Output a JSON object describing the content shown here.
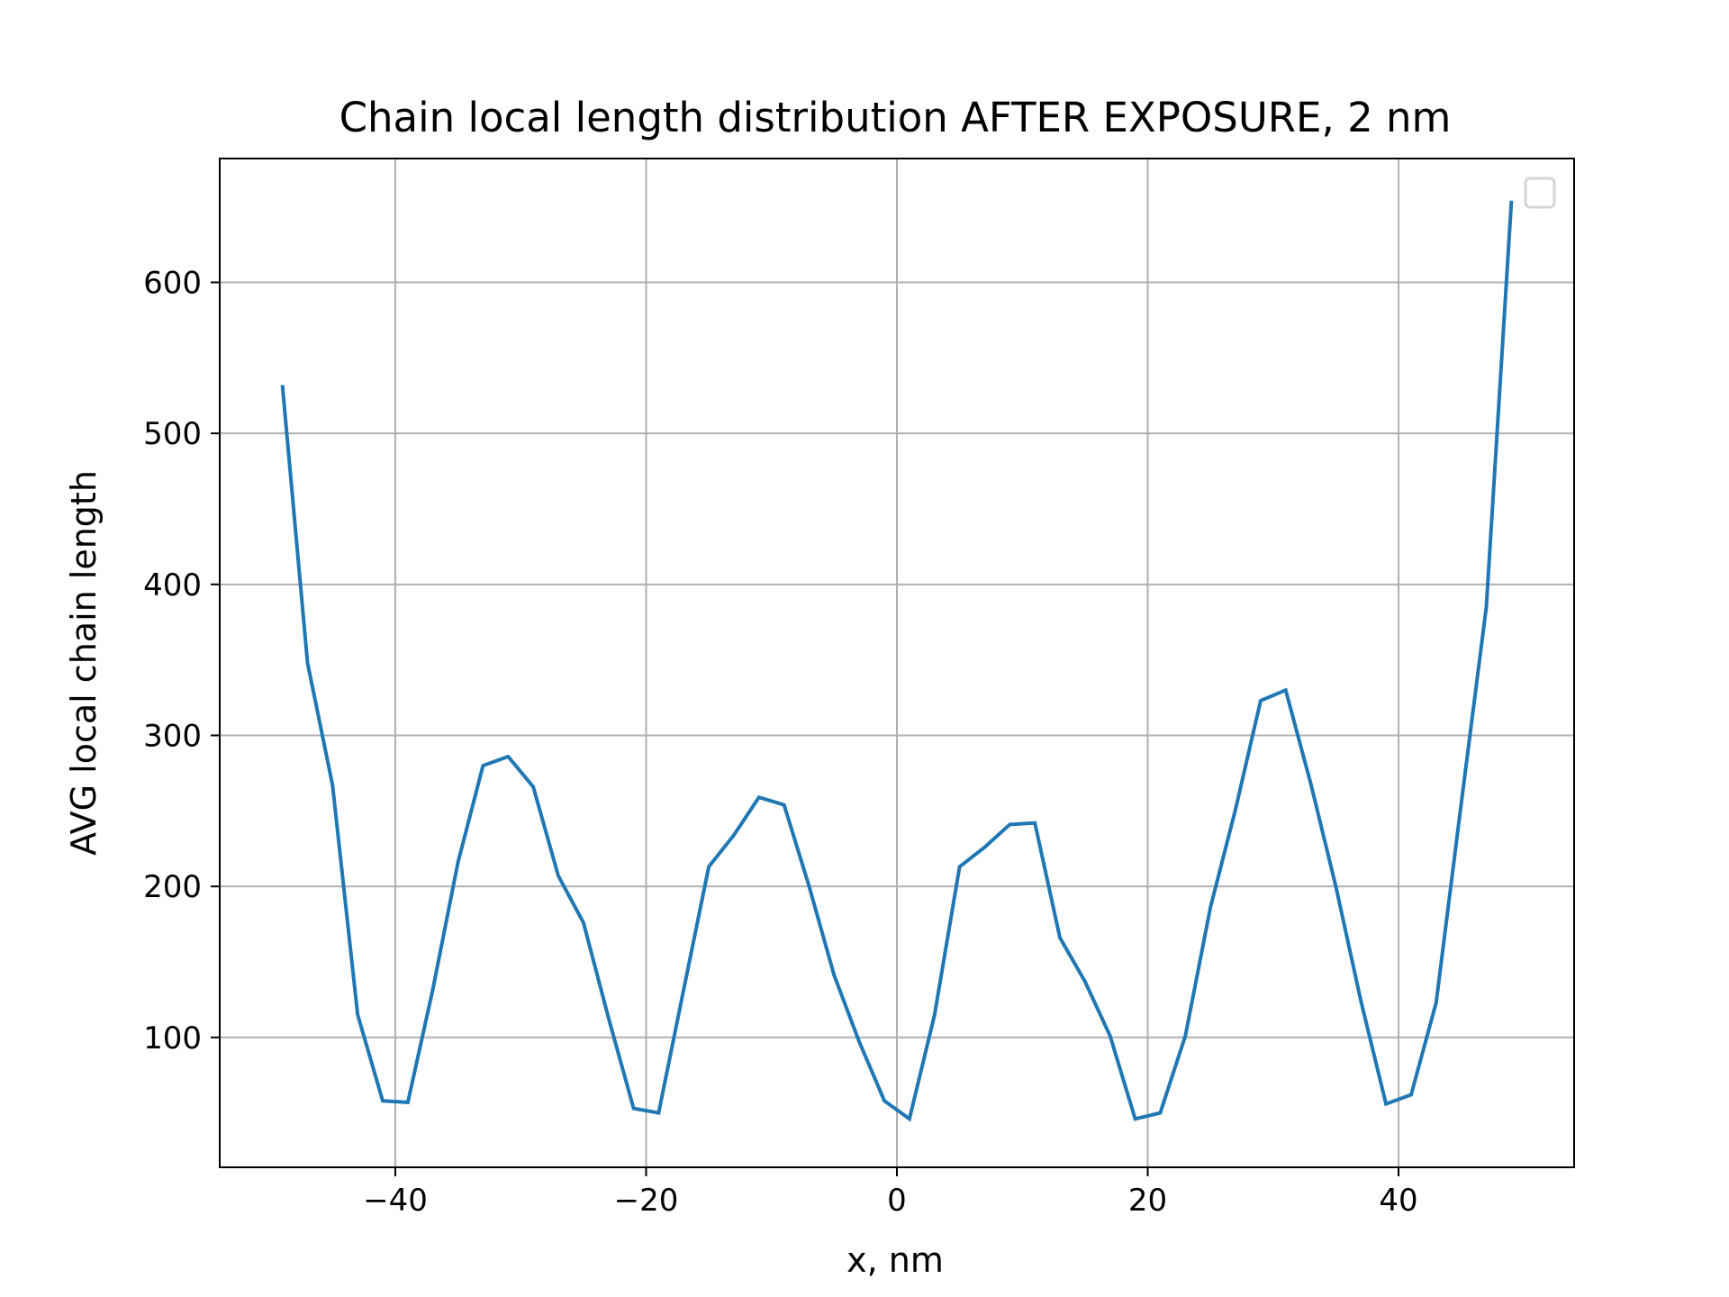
{
  "chart_data": {
    "type": "line",
    "title": "Chain local length distribution AFTER EXPOSURE, 2 nm",
    "xlabel": "x, nm",
    "ylabel": "AVG local chain length",
    "xlim": [
      -54,
      54
    ],
    "ylim": [
      14,
      682
    ],
    "xticks": [
      -40,
      -20,
      0,
      20,
      40
    ],
    "yticks": [
      100,
      200,
      300,
      400,
      500,
      600
    ],
    "xtick_labels": [
      "−40",
      "−20",
      "0",
      "20",
      "40"
    ],
    "ytick_labels": [
      "100",
      "200",
      "300",
      "400",
      "500",
      "600"
    ],
    "grid": true,
    "legend": "top-right (empty)",
    "colors": {
      "line": "#1f77b4",
      "grid": "#b0b0b0",
      "axes": "#000000"
    },
    "series": [
      {
        "x": [
          -49,
          -47,
          -45,
          -43,
          -41,
          -39,
          -37,
          -35,
          -33,
          -31,
          -29,
          -27,
          -25,
          -23,
          -21,
          -19,
          -17,
          -15,
          -13,
          -11,
          -9,
          -7,
          -5,
          -3,
          -1,
          1,
          3,
          5,
          7,
          9,
          11,
          13,
          15,
          17,
          19,
          21,
          23,
          25,
          27,
          29,
          31,
          33,
          35,
          37,
          39,
          41,
          43,
          45,
          47,
          49
        ],
        "y": [
          532,
          348,
          267,
          115,
          58,
          57,
          132,
          216,
          280,
          286,
          266,
          207,
          176,
          113,
          53,
          50,
          132,
          213,
          234,
          259,
          254,
          200,
          141,
          97,
          58,
          46,
          115,
          213,
          226,
          241,
          242,
          166,
          137,
          101,
          46,
          50,
          101,
          186,
          251,
          323,
          330,
          268,
          200,
          124,
          56,
          62,
          123,
          255,
          385,
          654
        ]
      }
    ]
  }
}
